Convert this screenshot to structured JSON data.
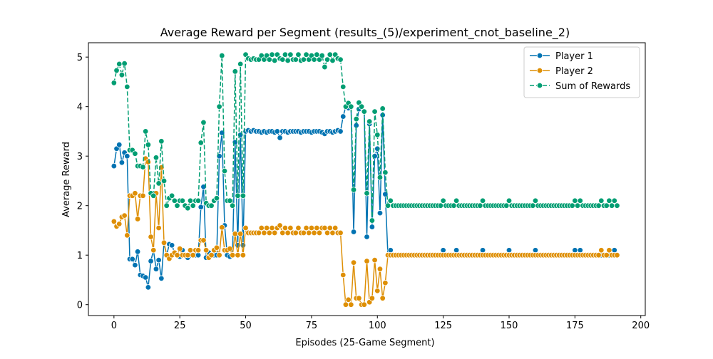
{
  "chart_data": {
    "type": "line",
    "title": "Average Reward per Segment (results_(5)/experiment_cnot_baseline_2)",
    "xlabel": "Episodes (25-Game Segment)",
    "ylabel": "Average Reward",
    "x": [
      0,
      1,
      2,
      3,
      4,
      5,
      6,
      7,
      8,
      9,
      10,
      11,
      12,
      13,
      14,
      15,
      16,
      17,
      18,
      19,
      20,
      21,
      22,
      23,
      24,
      25,
      26,
      27,
      28,
      29,
      30,
      31,
      32,
      33,
      34,
      35,
      36,
      37,
      38,
      39,
      40,
      41,
      42,
      43,
      44,
      45,
      46,
      47,
      48,
      49,
      50,
      51,
      52,
      53,
      54,
      55,
      56,
      57,
      58,
      59,
      60,
      61,
      62,
      63,
      64,
      65,
      66,
      67,
      68,
      69,
      70,
      71,
      72,
      73,
      74,
      75,
      76,
      77,
      78,
      79,
      80,
      81,
      82,
      83,
      84,
      85,
      86,
      87,
      88,
      89,
      90,
      91,
      92,
      93,
      94,
      95,
      96,
      97,
      98,
      99,
      100,
      101,
      102,
      103,
      104,
      105,
      106,
      107,
      108,
      109,
      110,
      111,
      112,
      113,
      114,
      115,
      116,
      117,
      118,
      119,
      120,
      121,
      122,
      123,
      124,
      125,
      126,
      127,
      128,
      129,
      130,
      131,
      132,
      133,
      134,
      135,
      136,
      137,
      138,
      139,
      140,
      141,
      142,
      143,
      144,
      145,
      146,
      147,
      148,
      149,
      150,
      151,
      152,
      153,
      154,
      155,
      156,
      157,
      158,
      159,
      160,
      161,
      162,
      163,
      164,
      165,
      166,
      167,
      168,
      169,
      170,
      171,
      172,
      173,
      174,
      175,
      176,
      177,
      178,
      179,
      180,
      181,
      182,
      183,
      184,
      185,
      186,
      187,
      188,
      189,
      190,
      191
    ],
    "series": [
      {
        "name": "Player 1",
        "color": "#0173b2",
        "dashed": false,
        "values": [
          2.8,
          3.15,
          3.23,
          2.87,
          3.07,
          3.0,
          0.92,
          0.92,
          0.8,
          1.07,
          0.6,
          0.58,
          0.55,
          0.35,
          0.88,
          1.1,
          0.72,
          0.9,
          0.53,
          1.25,
          1.0,
          1.22,
          1.2,
          1.05,
          1.0,
          0.97,
          1.1,
          1.0,
          0.95,
          1.0,
          1.0,
          1.0,
          1.0,
          1.97,
          2.38,
          0.95,
          1.05,
          1.0,
          1.0,
          1.0,
          3.0,
          3.47,
          1.6,
          1.0,
          0.97,
          1.0,
          3.28,
          1.2,
          3.43,
          1.2,
          3.5,
          3.52,
          3.5,
          3.52,
          3.5,
          3.5,
          3.48,
          3.5,
          3.48,
          3.5,
          3.5,
          3.48,
          3.5,
          3.37,
          3.5,
          3.5,
          3.48,
          3.5,
          3.5,
          3.5,
          3.5,
          3.48,
          3.5,
          3.5,
          3.5,
          3.48,
          3.5,
          3.5,
          3.5,
          3.48,
          3.45,
          3.5,
          3.5,
          3.48,
          3.5,
          3.52,
          3.5,
          3.8,
          4.0,
          3.97,
          4.0,
          1.47,
          3.62,
          3.95,
          4.0,
          3.9,
          1.37,
          3.65,
          1.57,
          3.0,
          3.15,
          1.85,
          3.83,
          2.23,
          1.0,
          1.1,
          1.0,
          1.0,
          1.0,
          1.0,
          1,
          1,
          1,
          1,
          1,
          1,
          1,
          1,
          1,
          1,
          1,
          1,
          1,
          1,
          1,
          1.1,
          1,
          1,
          1,
          1,
          1.1,
          1,
          1,
          1,
          1,
          1,
          1,
          1,
          1,
          1,
          1.1,
          1,
          1,
          1,
          1,
          1,
          1,
          1,
          1,
          1,
          1.1,
          1,
          1,
          1,
          1,
          1,
          1,
          1,
          1,
          1,
          1.1,
          1,
          1,
          1,
          1,
          1,
          1,
          1,
          1,
          1,
          1,
          1,
          1,
          1,
          1,
          1.1,
          1,
          1.1,
          1,
          1,
          1,
          1,
          1,
          1,
          1,
          1,
          1,
          1,
          1,
          1,
          1.1,
          1
        ]
      },
      {
        "name": "Player 2",
        "color": "#de8f05",
        "dashed": false,
        "values": [
          1.68,
          1.58,
          1.63,
          1.77,
          1.8,
          1.4,
          2.2,
          2.2,
          2.25,
          1.73,
          2.2,
          2.2,
          2.95,
          2.88,
          1.37,
          1.1,
          2.25,
          1.55,
          2.77,
          1.25,
          1.0,
          0.93,
          1.0,
          1.05,
          1.0,
          1.13,
          1.0,
          1.0,
          1.0,
          1.1,
          1.0,
          1.1,
          1.1,
          1.3,
          1.3,
          1.1,
          0.95,
          1.0,
          1.1,
          1.15,
          1.0,
          1.56,
          1.1,
          1.1,
          1.13,
          1.0,
          1.43,
          1.0,
          1.43,
          1.0,
          1.55,
          1.45,
          1.45,
          1.45,
          1.45,
          1.45,
          1.55,
          1.45,
          1.55,
          1.45,
          1.55,
          1.45,
          1.55,
          1.6,
          1.45,
          1.55,
          1.45,
          1.55,
          1.45,
          1.45,
          1.55,
          1.45,
          1.45,
          1.55,
          1.45,
          1.55,
          1.45,
          1.55,
          1.45,
          1.55,
          1.55,
          1.45,
          1.55,
          1.45,
          1.55,
          1.45,
          1.45,
          0.6,
          0.0,
          0.1,
          0.0,
          0.85,
          0.13,
          0.13,
          0.0,
          0.0,
          0.88,
          0.05,
          0.13,
          0.9,
          0.28,
          0.72,
          0.13,
          0.44,
          1.0,
          1.0,
          1.0,
          1.0,
          1.0,
          1.0,
          1,
          1,
          1,
          1,
          1,
          1,
          1,
          1,
          1,
          1,
          1,
          1,
          1,
          1,
          1,
          1,
          1,
          1,
          1,
          1,
          1,
          1,
          1,
          1,
          1,
          1,
          1,
          1,
          1,
          1,
          1,
          1,
          1,
          1,
          1,
          1,
          1,
          1,
          1,
          1,
          1,
          1,
          1,
          1,
          1,
          1,
          1,
          1,
          1,
          1,
          1,
          1,
          1,
          1,
          1,
          1,
          1,
          1,
          1,
          1,
          1,
          1,
          1,
          1,
          1,
          1,
          1,
          1,
          1,
          1,
          1,
          1,
          1,
          1,
          1,
          1.1,
          1,
          1,
          1.1,
          1,
          1,
          1
        ]
      },
      {
        "name": "Sum of Rewards",
        "color": "#029e73",
        "dashed": true,
        "values": [
          4.48,
          4.73,
          4.86,
          4.64,
          4.87,
          4.4,
          3.12,
          3.12,
          3.05,
          2.8,
          2.8,
          2.78,
          3.5,
          3.23,
          2.25,
          2.2,
          2.97,
          2.45,
          3.3,
          2.5,
          2.0,
          2.15,
          2.2,
          2.1,
          2.0,
          2.1,
          2.1,
          2.0,
          1.95,
          2.1,
          2.0,
          2.1,
          2.1,
          3.27,
          3.68,
          2.05,
          2.0,
          2.0,
          2.1,
          2.15,
          4.0,
          5.03,
          2.7,
          2.1,
          2.1,
          2.0,
          4.71,
          2.2,
          4.86,
          2.2,
          5.05,
          4.97,
          4.95,
          4.97,
          4.95,
          4.95,
          5.03,
          4.95,
          5.03,
          4.95,
          5.05,
          4.93,
          5.05,
          4.97,
          4.95,
          5.05,
          4.93,
          5.05,
          4.95,
          4.95,
          5.05,
          4.93,
          4.95,
          5.05,
          4.95,
          5.03,
          4.95,
          5.05,
          4.95,
          5.03,
          4.8,
          4.95,
          5.05,
          4.93,
          5.05,
          4.97,
          4.95,
          4.4,
          4.0,
          4.07,
          4.0,
          2.32,
          3.75,
          4.08,
          4.0,
          3.9,
          2.25,
          3.7,
          1.7,
          3.9,
          3.43,
          2.57,
          3.96,
          2.67,
          2.0,
          2.1,
          2.0,
          2.0,
          2.0,
          2.0,
          2,
          2,
          2,
          2,
          2,
          2,
          2,
          2,
          2,
          2,
          2,
          2,
          2,
          2,
          2,
          2.1,
          2,
          2,
          2,
          2,
          2.1,
          2,
          2,
          2,
          2,
          2,
          2,
          2,
          2,
          2,
          2.1,
          2,
          2,
          2,
          2,
          2,
          2,
          2,
          2,
          2,
          2.1,
          2,
          2,
          2,
          2,
          2,
          2,
          2,
          2,
          2,
          2.1,
          2,
          2,
          2,
          2,
          2,
          2,
          2,
          2,
          2,
          2,
          2,
          2,
          2,
          2,
          2.1,
          2,
          2.1,
          2,
          2,
          2,
          2,
          2,
          2,
          2,
          2.1,
          2,
          2,
          2.1,
          2,
          2.1,
          2
        ]
      }
    ],
    "xlim": [
      -9.7,
      201.7
    ],
    "ylim": [
      -0.22,
      5.29
    ],
    "xticks": [
      0,
      25,
      50,
      75,
      100,
      125,
      150,
      175,
      200
    ],
    "yticks": [
      0,
      1,
      2,
      3,
      4,
      5
    ],
    "legend": "upper right"
  }
}
